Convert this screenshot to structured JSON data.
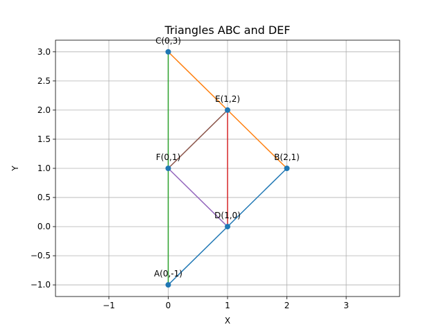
{
  "chart_data": {
    "type": "line",
    "title": "Triangles ABC and DEF",
    "xlabel": "X",
    "ylabel": "Y",
    "xlim": [
      -1.9,
      3.9
    ],
    "ylim": [
      -1.2,
      3.2
    ],
    "xticks": [
      -1,
      0,
      1,
      2,
      3
    ],
    "xtick_labels": [
      "−1",
      "0",
      "1",
      "2",
      "3"
    ],
    "yticks": [
      -1.0,
      -0.5,
      0.0,
      0.5,
      1.0,
      1.5,
      2.0,
      2.5,
      3.0
    ],
    "ytick_labels": [
      "−1.0",
      "−0.5",
      "0.0",
      "0.5",
      "1.0",
      "1.5",
      "2.0",
      "2.5",
      "3.0"
    ],
    "grid": true,
    "points": [
      {
        "label": "A(0,-1)",
        "x": 0,
        "y": -1
      },
      {
        "label": "B(2,1)",
        "x": 2,
        "y": 1
      },
      {
        "label": "C(0,3)",
        "x": 0,
        "y": 3
      },
      {
        "label": "D(1,0)",
        "x": 1,
        "y": 0
      },
      {
        "label": "E(1,2)",
        "x": 1,
        "y": 2
      },
      {
        "label": "F(0,1)",
        "x": 0,
        "y": 1
      }
    ],
    "series": [
      {
        "x": [
          0,
          2
        ],
        "y": [
          -1,
          1
        ],
        "color": "#1f77b4"
      },
      {
        "x": [
          2,
          0
        ],
        "y": [
          1,
          3
        ],
        "color": "#ff7f0e"
      },
      {
        "x": [
          0,
          0
        ],
        "y": [
          3,
          -1
        ],
        "color": "#2ca02c"
      },
      {
        "x": [
          1,
          1
        ],
        "y": [
          0,
          2
        ],
        "color": "#d62728"
      },
      {
        "x": [
          1,
          0
        ],
        "y": [
          2,
          1
        ],
        "color": "#8c564b"
      },
      {
        "x": [
          0,
          1
        ],
        "y": [
          1,
          0
        ],
        "color": "#9467bd"
      }
    ],
    "marker_color": "#1f77b4"
  }
}
